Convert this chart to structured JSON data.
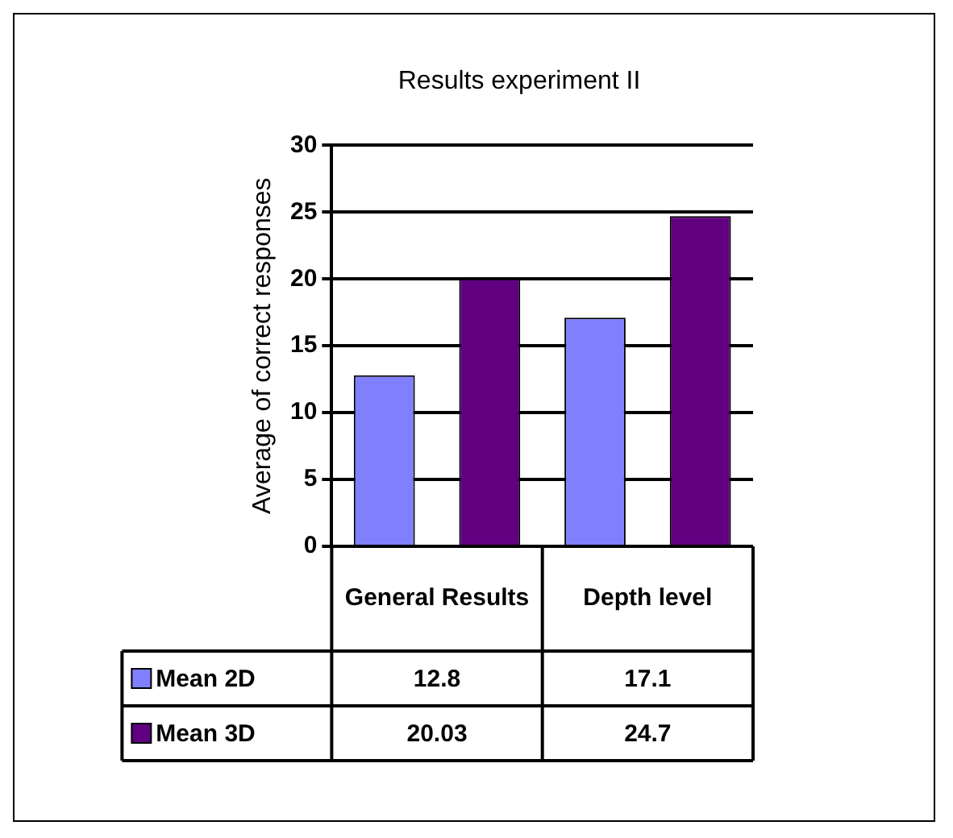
{
  "chart_data": {
    "type": "bar",
    "title": "Results experiment II",
    "ylabel": "Average of correct responses",
    "categories": [
      "General Results",
      "Depth level"
    ],
    "series": [
      {
        "name": "Mean 2D",
        "color": "#8080ff",
        "values": [
          12.8,
          17.1
        ]
      },
      {
        "name": "Mean 3D",
        "color": "#600080",
        "values": [
          20.03,
          24.7
        ]
      }
    ],
    "ylim": [
      0,
      30
    ],
    "yticks": [
      0,
      5,
      10,
      15,
      20,
      25,
      30
    ],
    "grid": "y",
    "data_labels": true,
    "legend": "bottom left"
  }
}
